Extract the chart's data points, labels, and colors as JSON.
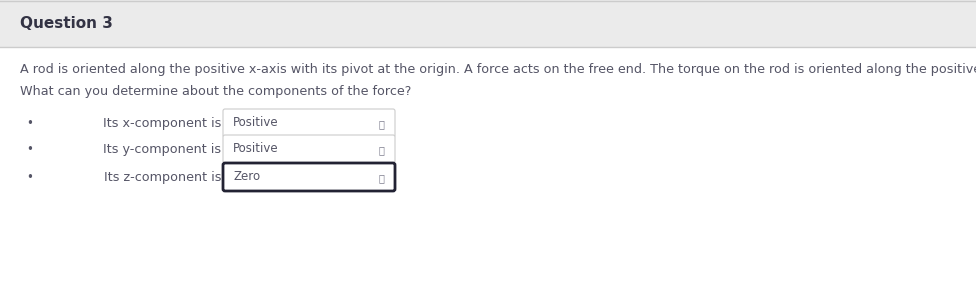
{
  "title": "Question 3",
  "description": "A rod is oriented along the positive x-axis with its pivot at the origin. A force acts on the free end. The torque on the rod is oriented along the positive z-axis.",
  "question": "What can you determine about the components of the force?",
  "items": [
    {
      "label": "Its x-component is",
      "value": "Positive",
      "selected": false
    },
    {
      "label": "Its y-component is",
      "value": "Positive",
      "selected": false
    },
    {
      "label": "Its z-component is",
      "value": "Zero",
      "selected": true
    }
  ],
  "bg_color": "#f7f7f7",
  "header_bg": "#ebebeb",
  "content_bg": "#ffffff",
  "text_color": "#555566",
  "title_color": "#333344",
  "box_bg": "#ffffff",
  "box_border_normal": "#cccccc",
  "box_border_selected": "#222233",
  "dropdown_text_color": "#555566",
  "bullet_color": "#555566",
  "header_top_border": "#cccccc",
  "header_bottom_border": "#cccccc"
}
